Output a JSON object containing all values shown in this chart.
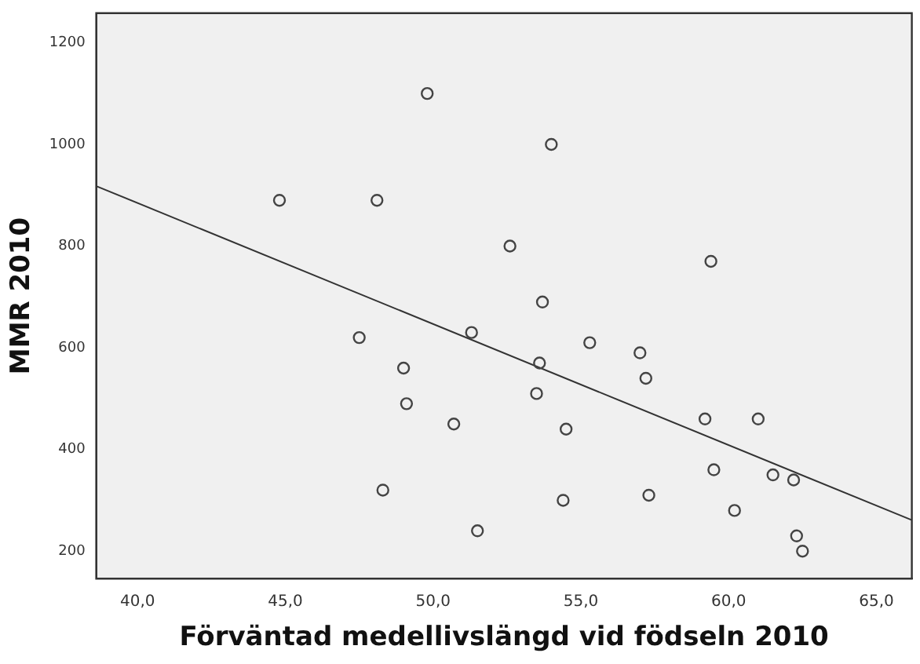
{
  "chart_data": {
    "type": "scatter",
    "xlabel": "Förväntad medellivslängd vid födseln 2010",
    "ylabel": "MMR 2010",
    "xlim": [
      38.6,
      66.2
    ],
    "ylim": [
      146,
      1258
    ],
    "xticks": [
      {
        "value": 40,
        "label": "40,0"
      },
      {
        "value": 45,
        "label": "45,0"
      },
      {
        "value": 50,
        "label": "50,0"
      },
      {
        "value": 55,
        "label": "55,0"
      },
      {
        "value": 60,
        "label": "60,0"
      },
      {
        "value": 65,
        "label": "65,0"
      }
    ],
    "yticks": [
      200,
      400,
      600,
      800,
      1000,
      1200
    ],
    "grid": false,
    "legend": false,
    "series": [
      {
        "marker": "circle",
        "color": "#444444",
        "x": [
          44.8,
          48.1,
          49.8,
          47.5,
          49.0,
          49.1,
          48.3,
          50.7,
          54.0,
          52.6,
          59.4,
          53.7,
          51.3,
          55.3,
          57.0,
          53.6,
          57.2,
          53.5,
          54.5,
          59.2,
          61.0,
          59.5,
          61.5,
          62.2,
          54.4,
          57.3,
          51.5,
          60.2,
          62.3,
          62.5
        ],
        "values": [
          890,
          890,
          1100,
          620,
          560,
          490,
          320,
          450,
          1000,
          800,
          770,
          690,
          630,
          610,
          590,
          570,
          540,
          510,
          440,
          460,
          460,
          360,
          350,
          340,
          300,
          310,
          240,
          280,
          230,
          200
        ]
      },
      {
        "type": "line",
        "color": "#333333",
        "x": [
          38.6,
          66.2
        ],
        "values": [
          918,
          261
        ]
      }
    ]
  }
}
